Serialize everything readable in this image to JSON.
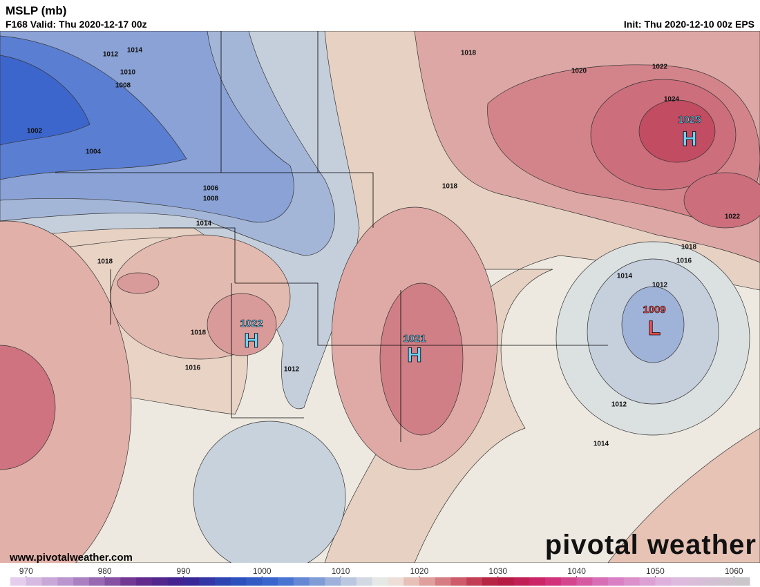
{
  "header": {
    "title": "MSLP (mb)",
    "valid": "F168 Valid: Thu 2020-12-17 00z",
    "init": "Init: Thu 2020-12-10 00z EPS"
  },
  "map": {
    "contour_labels": [
      1012,
      1014,
      1010,
      1008,
      1002,
      1004,
      1006,
      1008,
      1014,
      1018,
      1018,
      1016,
      1012,
      1018,
      1020,
      1022,
      1024,
      1018,
      1022,
      1018,
      1016,
      1014,
      1012,
      1012,
      1014
    ],
    "centers": [
      {
        "label": "H",
        "value": 1022
      },
      {
        "label": "H",
        "value": 1021
      },
      {
        "label": "H",
        "value": 1025
      },
      {
        "label": "L",
        "value": 1009
      }
    ]
  },
  "footer": {
    "website": "www.pivotalweather.com",
    "brand": "pivotal weather"
  },
  "colorbar": {
    "ticks": [
      970,
      980,
      990,
      1000,
      1010,
      1020,
      1030,
      1040,
      1050,
      1060
    ],
    "range": [
      968,
      1062
    ],
    "step": 2,
    "stops": [
      {
        "value": 968,
        "color": "#ecd6f2"
      },
      {
        "value": 976,
        "color": "#b48cc8"
      },
      {
        "value": 984,
        "color": "#6a2c8c"
      },
      {
        "value": 990,
        "color": "#3c2090"
      },
      {
        "value": 996,
        "color": "#2a4cb8"
      },
      {
        "value": 1002,
        "color": "#3c6ad0"
      },
      {
        "value": 1008,
        "color": "#8ea6d8"
      },
      {
        "value": 1012,
        "color": "#c8d2e0"
      },
      {
        "value": 1016,
        "color": "#f0efe8"
      },
      {
        "value": 1020,
        "color": "#e4b0a8"
      },
      {
        "value": 1026,
        "color": "#c84a5e"
      },
      {
        "value": 1030,
        "color": "#b0183a"
      },
      {
        "value": 1036,
        "color": "#d02870"
      },
      {
        "value": 1044,
        "color": "#d878c0"
      },
      {
        "value": 1052,
        "color": "#e0b8e0"
      },
      {
        "value": 1062,
        "color": "#c8c8c8"
      }
    ]
  }
}
